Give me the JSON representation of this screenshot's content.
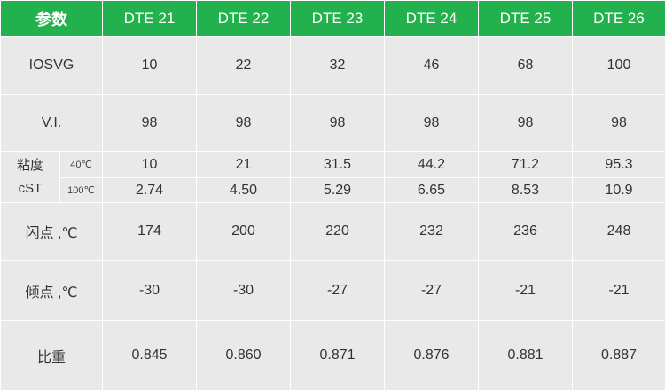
{
  "header": {
    "param": "参数",
    "columns": [
      "DTE 21",
      "DTE 22",
      "DTE 23",
      "DTE 24",
      "DTE 25",
      "DTE 26"
    ]
  },
  "rows": {
    "iosvg": {
      "label": "IOSVG",
      "values": [
        "10",
        "22",
        "32",
        "46",
        "68",
        "100"
      ]
    },
    "vi": {
      "label": "V.I.",
      "values": [
        "98",
        "98",
        "98",
        "98",
        "98",
        "98"
      ]
    },
    "viscosity": {
      "label_line1": "粘度",
      "label_line2": "cST",
      "t40": {
        "label": "40℃",
        "values": [
          "10",
          "21",
          "31.5",
          "44.2",
          "71.2",
          "95.3"
        ]
      },
      "t100": {
        "label": "100℃",
        "values": [
          "2.74",
          "4.50",
          "5.29",
          "6.65",
          "8.53",
          "10.9"
        ]
      }
    },
    "flash": {
      "label": "闪点 ,℃",
      "values": [
        "174",
        "200",
        "220",
        "232",
        "236",
        "248"
      ]
    },
    "pour": {
      "label": "倾点 ,℃",
      "values": [
        "-30",
        "-30",
        "-27",
        "-27",
        "-21",
        "-21"
      ]
    },
    "sg": {
      "label": "比重",
      "values": [
        "0.845",
        "0.860",
        "0.871",
        "0.876",
        "0.881",
        "0.887"
      ]
    }
  },
  "colors": {
    "header_bg": "#23b14d",
    "cell_bg": "#e9e9e9",
    "border": "#ffffff",
    "text": "#333333"
  }
}
